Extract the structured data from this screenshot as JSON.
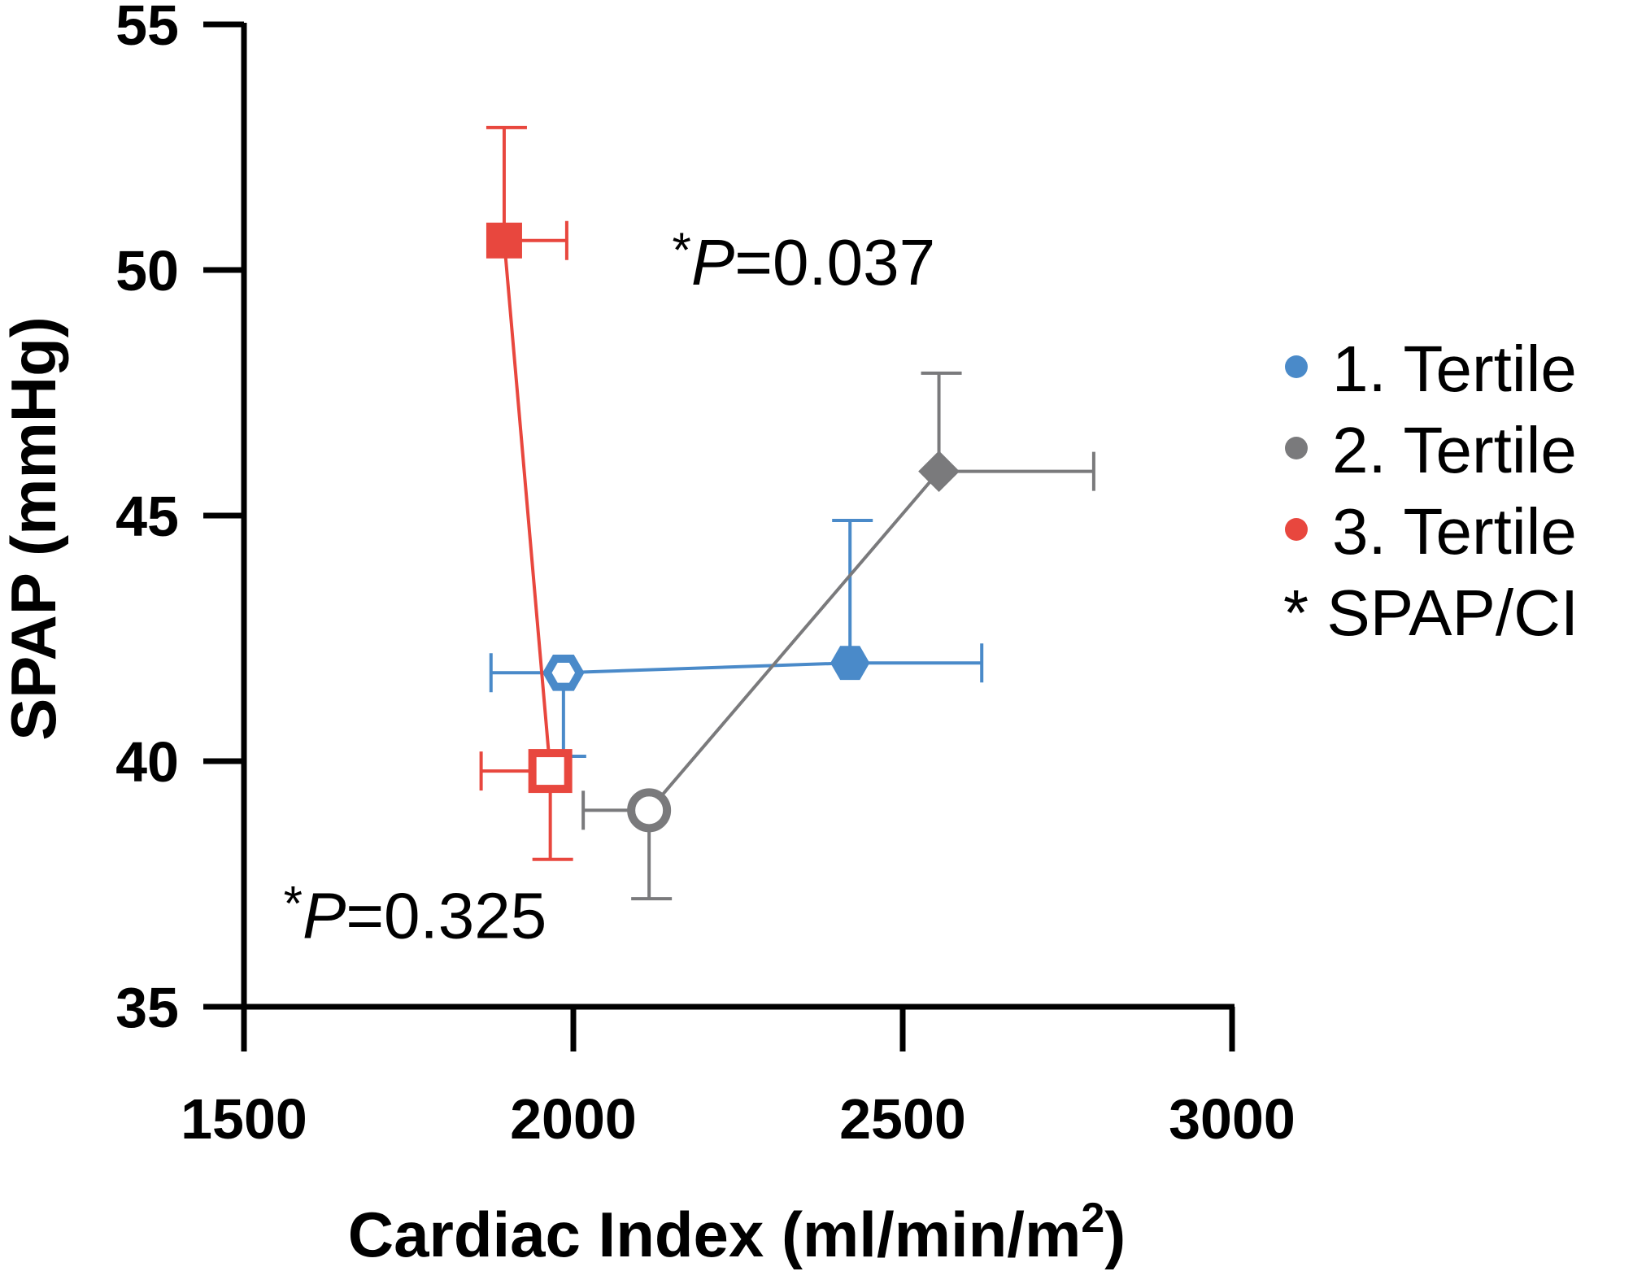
{
  "chart_data": {
    "type": "scatter",
    "xlabel": "Cardiac Index (ml/min/m",
    "xlabel_sup": "2",
    "xlabel_close": ")",
    "ylabel": "SPAP (mmHg)",
    "xlim": [
      1500,
      3000
    ],
    "ylim": [
      35,
      55
    ],
    "xticks": [
      1500,
      2000,
      2500,
      3000
    ],
    "yticks": [
      35,
      40,
      45,
      50,
      55
    ],
    "legend_position": "right",
    "series": [
      {
        "name": "1. Tertile",
        "color": "#4a8ac9",
        "points": [
          {
            "x": 1985,
            "y": 41.8,
            "marker": "hexagon",
            "filled": false,
            "xerr_minus": 110,
            "yerr_minus": 1.7
          },
          {
            "x": 2420,
            "y": 42.0,
            "marker": "hexagon",
            "filled": true,
            "xerr_plus": 200,
            "yerr_plus": 2.9
          }
        ]
      },
      {
        "name": "2. Tertile",
        "color": "#7a7a7c",
        "points": [
          {
            "x": 2115,
            "y": 39.0,
            "marker": "circle",
            "filled": false,
            "xerr_minus": 100,
            "yerr_minus": 1.8
          },
          {
            "x": 2555,
            "y": 45.9,
            "marker": "diamond",
            "filled": true,
            "xerr_plus": 235,
            "yerr_plus": 2.0
          }
        ]
      },
      {
        "name": "3. Tertile",
        "color": "#e8473e",
        "points": [
          {
            "x": 1895,
            "y": 50.6,
            "marker": "square",
            "filled": true,
            "xerr_plus": 95,
            "yerr_plus": 2.3
          },
          {
            "x": 1965,
            "y": 39.8,
            "marker": "square",
            "filled": false,
            "xerr_minus": 105,
            "yerr_minus": 1.8
          }
        ]
      }
    ],
    "legend_extra": "* SPAP/CI",
    "annotations": [
      {
        "star": "*",
        "italic": "P",
        "rest": "=0.037",
        "x": 2150,
        "y": 49.7
      },
      {
        "star": "*",
        "italic": "P",
        "rest": "=0.325",
        "x": 1560,
        "y": 36.4
      }
    ]
  }
}
